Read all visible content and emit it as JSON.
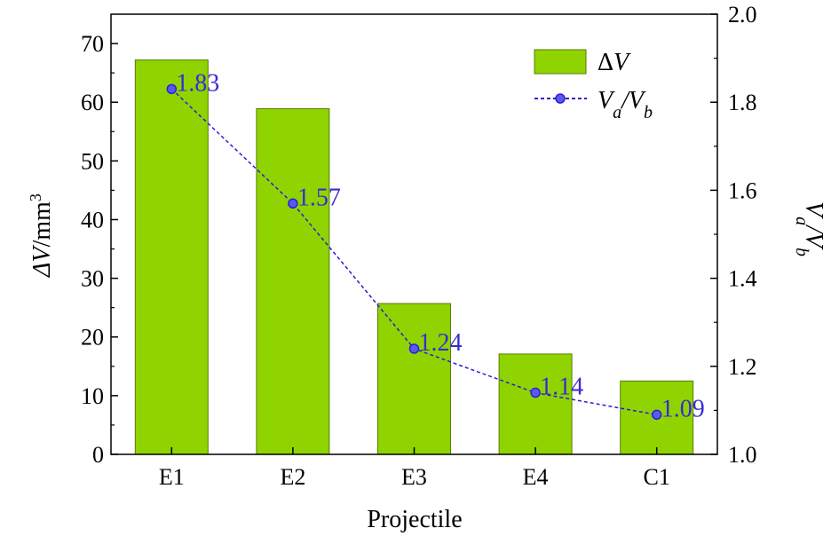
{
  "chart_data": {
    "type": "bar",
    "categories": [
      "E1",
      "E2",
      "E3",
      "E4",
      "C1"
    ],
    "series": [
      {
        "name": "ΔV",
        "type": "bar",
        "axis": "left",
        "values": [
          67.2,
          58.9,
          25.7,
          17.1,
          12.5
        ],
        "color": "#8fd400"
      },
      {
        "name": "Va/Vb",
        "type": "line",
        "axis": "right",
        "values": [
          1.83,
          1.57,
          1.24,
          1.14,
          1.09
        ],
        "labels": [
          "1.83",
          "1.57",
          "1.24",
          "1.14",
          "1.09"
        ],
        "color": "#2b1fd6"
      }
    ],
    "xlabel": "Projectile",
    "ylabel_left": "ΔV/mm³",
    "ylabel_right": "Va/Vb",
    "ylim_left": [
      0,
      75
    ],
    "ylim_right": [
      1.0,
      2.0
    ],
    "yticks_left": [
      "0",
      "10",
      "20",
      "30",
      "40",
      "50",
      "60",
      "70"
    ],
    "yticks_right": [
      "1.0",
      "1.2",
      "1.4",
      "1.6",
      "1.8",
      "2.0"
    ],
    "legend": [
      "ΔV",
      "Va/Vb"
    ],
    "legend_position": "top-right",
    "grid": false
  }
}
